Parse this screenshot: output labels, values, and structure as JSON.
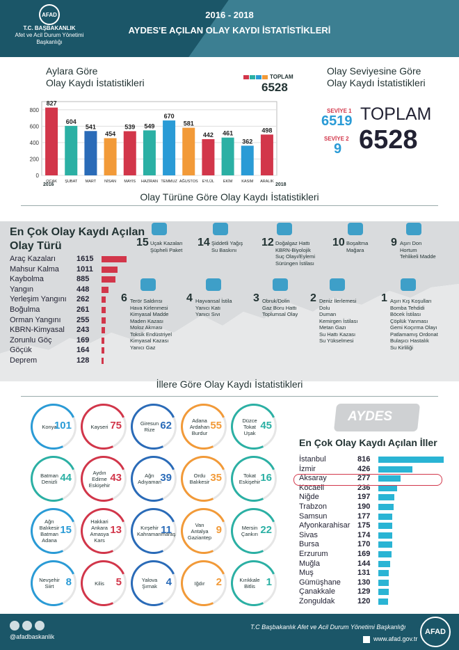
{
  "header": {
    "logo_text": "AFAD",
    "org_name": "T.C. BAŞBAKANLIK",
    "org_sub": "Afet ve Acil Durum Yönetimi Başkanlığı",
    "years": "2016 - 2018",
    "title": "AYDES'E AÇILAN OLAY KAYDI İSTATİSTİKLERİ"
  },
  "monthly": {
    "title_line1": "Aylara Göre",
    "title_line2": "Olay Kaydı İstatistikleri",
    "legend_label": "TOPLAM",
    "legend_total": "6528",
    "year_start": "2016",
    "year_end": "2018"
  },
  "level": {
    "title_line1": "Olay Seviyesine Göre",
    "title_line2": "Olay Kaydı İstatistikleri",
    "l1_label": "SEVİYE 1",
    "l1_value": "6519",
    "l2_label": "SEVİYE 2",
    "l2_value": "9",
    "total_label": "TOPLAM",
    "total_value": "6528"
  },
  "type_section": {
    "title": "Olay Türüne Göre Olay Kaydı İstatistikleri",
    "top_title_line1": "En Çok Olay Kaydı Açılan",
    "top_title_line2": "Olay Türü"
  },
  "type_tiles": [
    {
      "num": "15",
      "lines": [
        "Uçak Kazaları",
        "Şüpheli Paket"
      ]
    },
    {
      "num": "14",
      "lines": [
        "Şiddetli Yağış",
        "Su Baskını"
      ]
    },
    {
      "num": "12",
      "lines": [
        "Doğalgaz Hattı",
        "KBRN-Biyolojik",
        "Suç Olayı/Eylemi",
        "Sürüngen İstilası"
      ]
    },
    {
      "num": "10",
      "lines": [
        "Boşaltma",
        "Mağara"
      ]
    },
    {
      "num": "9",
      "lines": [
        "Aşırı Don",
        "Hortum",
        "Tehlikeli Madde"
      ]
    },
    {
      "num": "6",
      "lines": [
        "Terör Saldırısı",
        "Hava Kirlenmesi",
        "Kimyasal Madde",
        "Maden Kazası",
        "Moloz Akması",
        "Toksik Endüstriyel Kimyasal Kazası",
        "Yanıcı Gaz"
      ]
    },
    {
      "num": "4",
      "lines": [
        "Hayvansal İstila",
        "Yanıcı Katı",
        "Yanıcı Sıvı"
      ]
    },
    {
      "num": "3",
      "lines": [
        "Obruk/Dolin",
        "Gaz Boru Hattı",
        "Toplumsal Olay"
      ]
    },
    {
      "num": "2",
      "lines": [
        "Deniz İlerlemesi",
        "Dolu",
        "Duman",
        "Kemirgen İstilası",
        "Metan Gazı",
        "Su Hattı Kazası",
        "Su Yükselmesi"
      ]
    },
    {
      "num": "1",
      "lines": [
        "Aşırı Kış Koşulları",
        "Bomba Tehdidi",
        "Böcek İstilası",
        "Çöplük Yanması",
        "Gemi Koçırma Olayı",
        "Patlamamış Ordonat",
        "Bulaşıcı Hastalık",
        "Su Kirliliği"
      ]
    }
  ],
  "province_section": {
    "title": "İllere Göre Olay Kaydı İstatistikleri",
    "brand": "AYDES",
    "top_title": "En Çok Olay Kaydı Açılan İller"
  },
  "province_rings": [
    {
      "names": [
        "Konya"
      ],
      "value": "101",
      "color": "#2a9bd6"
    },
    {
      "names": [
        "Kayseri"
      ],
      "value": "75",
      "color": "#d2364a"
    },
    {
      "names": [
        "Giresun",
        "Rize"
      ],
      "value": "62",
      "color": "#2a6bb8"
    },
    {
      "names": [
        "Adana",
        "Ardahan",
        "Burdur"
      ],
      "value": "55",
      "color": "#f29a38"
    },
    {
      "names": [
        "Düzce",
        "Tokat",
        "Uşak"
      ],
      "value": "45",
      "color": "#2bb0a4"
    },
    {
      "names": [
        "Batman",
        "Denizli"
      ],
      "value": "44",
      "color": "#2bb0a4"
    },
    {
      "names": [
        "Aydın",
        "Edirne",
        "Eskişehir"
      ],
      "value": "43",
      "color": "#d2364a"
    },
    {
      "names": [
        "Ağrı",
        "Adıyaman"
      ],
      "value": "39",
      "color": "#2a6bb8"
    },
    {
      "names": [
        "Ordu",
        "Balıkesir"
      ],
      "value": "35",
      "color": "#f29a38"
    },
    {
      "names": [
        "Tokat",
        "Eskişehir"
      ],
      "value": "16",
      "color": "#2bb0a4"
    },
    {
      "names": [
        "Ağrı",
        "Balıkesir",
        "Batman",
        "Adana"
      ],
      "value": "15",
      "color": "#2a9bd6"
    },
    {
      "names": [
        "Hakkari",
        "Ankara",
        "Amasya",
        "Kars"
      ],
      "value": "13",
      "color": "#d2364a"
    },
    {
      "names": [
        "Kırşehir",
        "Kahramanmaraş"
      ],
      "value": "11",
      "color": "#2a6bb8"
    },
    {
      "names": [
        "Van",
        "Antalya",
        "Gaziantep"
      ],
      "value": "9",
      "color": "#f29a38"
    },
    {
      "names": [
        "Mersin",
        "Çankırı"
      ],
      "value": "22",
      "color": "#2bb0a4"
    },
    {
      "names": [
        "Nevşehir",
        "Siirt"
      ],
      "value": "8",
      "color": "#2a9bd6"
    },
    {
      "names": [
        "Kilis"
      ],
      "value": "5",
      "color": "#d2364a"
    },
    {
      "names": [
        "Yalova",
        "Şırnak"
      ],
      "value": "4",
      "color": "#2a6bb8"
    },
    {
      "names": [
        "Iğdır"
      ],
      "value": "2",
      "color": "#f29a38"
    },
    {
      "names": [
        "Kırıkkale",
        "Bitlis"
      ],
      "value": "1",
      "color": "#2bb0a4"
    }
  ],
  "footer": {
    "handle": "@afadbaskanlik",
    "org": "T.C Başbakanlık Afet ve Acil Durum Yönetimi Başkanlığı",
    "url": "www.afad.gov.tr",
    "logo": "AFAD"
  },
  "chart_data": [
    {
      "type": "bar",
      "categories": [
        "OCAK",
        "ŞUBAT",
        "MART",
        "NİSAN",
        "MAYIS",
        "HAZİRAN",
        "TEMMUZ",
        "AĞUSTOS",
        "EYLÜL",
        "EKİM",
        "KASIM",
        "ARALIK"
      ],
      "values": [
        827,
        604,
        541,
        454,
        539,
        549,
        670,
        581,
        442,
        461,
        362,
        498
      ],
      "colors": [
        "#d2364a",
        "#2bb0a4",
        "#2a6bb8",
        "#f29a38",
        "#d2364a",
        "#2bb0a4",
        "#2a9bd6",
        "#f29a38",
        "#d2364a",
        "#2bb0a4",
        "#2a9bd6",
        "#d2364a"
      ],
      "yticks": [
        0,
        200,
        400,
        600,
        800
      ],
      "ylim": [
        0,
        900
      ],
      "title": "Aylara Göre Olay Kaydı İstatistikleri"
    },
    {
      "type": "bar",
      "orientation": "horizontal",
      "categories": [
        "Araç Kazaları",
        "Mahsur Kalma",
        "Kaybolma",
        "Yangın",
        "Yerleşim Yangını",
        "Boğulma",
        "Orman Yangını",
        "KBRN-Kimyasal",
        "Zorunlu Göç",
        "Göçük",
        "Deprem"
      ],
      "values": [
        1615,
        1011,
        885,
        448,
        262,
        261,
        255,
        243,
        169,
        164,
        128
      ],
      "title": "En Çok Olay Kaydı Açılan Olay Türü"
    },
    {
      "type": "bar",
      "orientation": "horizontal",
      "categories": [
        "İstanbul",
        "İzmir",
        "Aksaray",
        "Kocaeli",
        "Niğde",
        "Trabzon",
        "Samsun",
        "Afyonkarahisar",
        "Sivas",
        "Bursa",
        "Erzurum",
        "Muğla",
        "Muş",
        "Gümüşhane",
        "Çanakkale",
        "Zonguldak"
      ],
      "values": [
        816,
        426,
        277,
        236,
        197,
        190,
        177,
        175,
        174,
        170,
        169,
        144,
        131,
        130,
        129,
        120
      ],
      "title": "En Çok Olay Kaydı Açılan İller"
    }
  ]
}
